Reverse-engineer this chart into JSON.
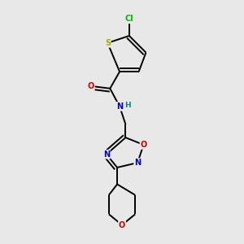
{
  "background_color": "#e8e8e8",
  "atom_colors": {
    "C": "#000000",
    "N": "#0000cc",
    "O": "#cc0000",
    "S": "#aaaa00",
    "Cl": "#00bb00",
    "H": "#008888"
  },
  "figsize": [
    3.0,
    3.0
  ],
  "dpi": 100,
  "xlim": [
    0,
    10
  ],
  "ylim": [
    0,
    10
  ]
}
